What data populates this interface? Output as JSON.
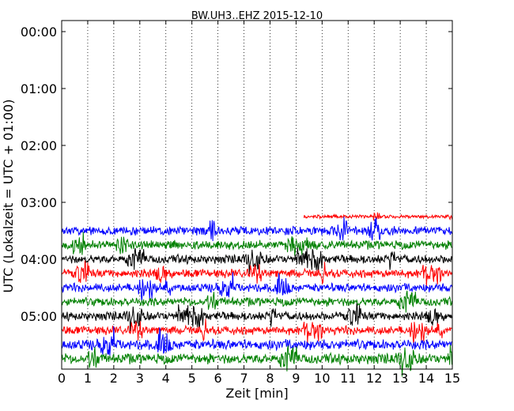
{
  "chart_data": {
    "type": "line",
    "title": "BW.UH3..EHZ 2015-12-10",
    "xlabel": "Zeit  [min]",
    "ylabel": "UTC (Lokalzeit = UTC + 01:00)",
    "xlim": [
      0,
      15
    ],
    "x_ticks": [
      "0",
      "1",
      "2",
      "3",
      "4",
      "5",
      "6",
      "7",
      "8",
      "9",
      "10",
      "11",
      "12",
      "13",
      "14",
      "15"
    ],
    "y_ticks": [
      "00:00",
      "01:00",
      "02:00",
      "03:00",
      "04:00",
      "05:00"
    ],
    "grid": "vertical dotted lines at each minute",
    "series_colors": [
      "#ff0000",
      "#0000ff",
      "#008000",
      "#000000"
    ],
    "traces": [
      {
        "start": "03:15",
        "color": "#ff0000",
        "start_min": 9.3,
        "end_min": 15
      },
      {
        "start": "03:30",
        "color": "#0000ff",
        "start_min": 0,
        "end_min": 15
      },
      {
        "start": "03:45",
        "color": "#008000",
        "start_min": 0,
        "end_min": 15
      },
      {
        "start": "04:00",
        "color": "#000000",
        "start_min": 0,
        "end_min": 15
      },
      {
        "start": "04:15",
        "color": "#ff0000",
        "start_min": 0,
        "end_min": 15
      },
      {
        "start": "04:30",
        "color": "#0000ff",
        "start_min": 0,
        "end_min": 15
      },
      {
        "start": "04:45",
        "color": "#008000",
        "start_min": 0,
        "end_min": 15
      },
      {
        "start": "05:00",
        "color": "#000000",
        "start_min": 0,
        "end_min": 15
      },
      {
        "start": "05:15",
        "color": "#ff0000",
        "start_min": 0,
        "end_min": 15
      },
      {
        "start": "05:30",
        "color": "#0000ff",
        "start_min": 0,
        "end_min": 15
      },
      {
        "start": "05:45",
        "color": "#008000",
        "start_min": 0,
        "end_min": 15
      }
    ]
  }
}
